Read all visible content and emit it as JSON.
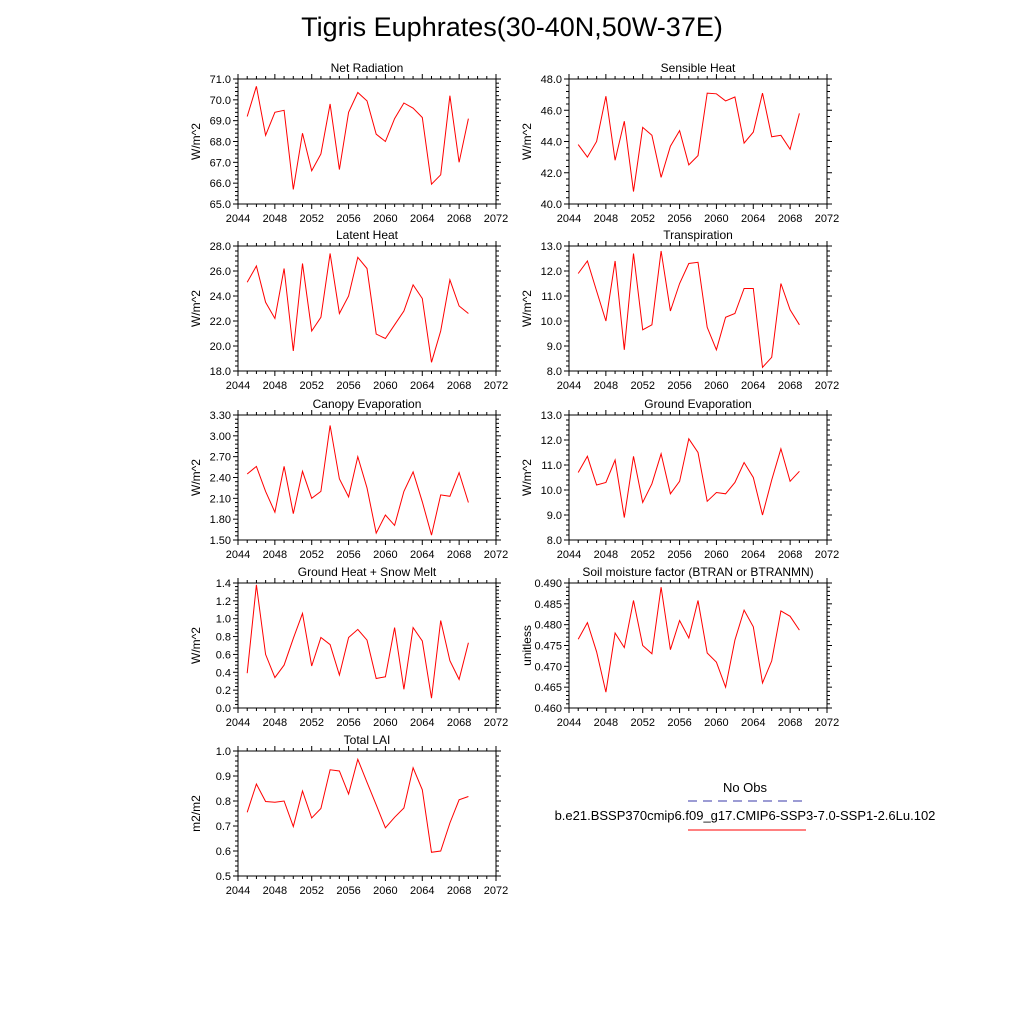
{
  "title": "Tigris Euphrates(30-40N,50W-37E)",
  "colors": {
    "series": "#ff0000",
    "obs": "#3a3aa8",
    "axis": "#000000"
  },
  "legend": {
    "obs_label": "No Obs",
    "case_label": "b.e21.BSSP370cmip6.f09_g17.CMIP6-SSP3-7.0-SSP1-2.6Lu.102"
  },
  "chart_data": [
    {
      "type": "line",
      "title": "Net Radiation",
      "ylabel": "W/m^2",
      "xlim": [
        2044,
        2072
      ],
      "xticks": [
        "2044",
        "2048",
        "2052",
        "2056",
        "2060",
        "2064",
        "2068",
        "2072"
      ],
      "ylim": [
        65.0,
        71.0
      ],
      "yticks": [
        "65.0",
        "66.0",
        "67.0",
        "68.0",
        "69.0",
        "70.0",
        "71.0"
      ],
      "x": [
        2045,
        2046,
        2047,
        2048,
        2049,
        2050,
        2051,
        2052,
        2053,
        2054,
        2055,
        2056,
        2057,
        2058,
        2059,
        2060,
        2061,
        2062,
        2063,
        2064,
        2065,
        2066,
        2067,
        2068,
        2069
      ],
      "values": [
        69.2,
        70.65,
        68.3,
        69.4,
        69.5,
        65.7,
        68.4,
        66.6,
        67.4,
        69.8,
        66.65,
        69.4,
        70.35,
        69.95,
        68.35,
        68.0,
        69.1,
        69.85,
        69.6,
        69.15,
        65.95,
        66.4,
        70.2,
        67.0,
        69.1
      ]
    },
    {
      "type": "line",
      "title": "Sensible Heat",
      "ylabel": "W/m^2",
      "xlim": [
        2044,
        2072
      ],
      "xticks": [
        "2044",
        "2048",
        "2052",
        "2056",
        "2060",
        "2064",
        "2068",
        "2072"
      ],
      "ylim": [
        40.0,
        48.0
      ],
      "yticks": [
        "40.0",
        "42.0",
        "44.0",
        "46.0",
        "48.0"
      ],
      "x": [
        2045,
        2046,
        2047,
        2048,
        2049,
        2050,
        2051,
        2052,
        2053,
        2054,
        2055,
        2056,
        2057,
        2058,
        2059,
        2060,
        2061,
        2062,
        2063,
        2064,
        2065,
        2066,
        2067,
        2068,
        2069
      ],
      "values": [
        43.8,
        43.0,
        44.0,
        46.9,
        42.8,
        45.3,
        40.8,
        44.9,
        44.4,
        41.7,
        43.7,
        44.7,
        42.5,
        43.1,
        47.1,
        47.05,
        46.6,
        46.85,
        43.9,
        44.6,
        47.1,
        44.3,
        44.4,
        43.5,
        45.8
      ]
    },
    {
      "type": "line",
      "title": "Latent Heat",
      "ylabel": "W/m^2",
      "xlim": [
        2044,
        2072
      ],
      "xticks": [
        "2044",
        "2048",
        "2052",
        "2056",
        "2060",
        "2064",
        "2068",
        "2072"
      ],
      "ylim": [
        18.0,
        28.0
      ],
      "yticks": [
        "18.0",
        "20.0",
        "22.0",
        "24.0",
        "26.0",
        "28.0"
      ],
      "x": [
        2045,
        2046,
        2047,
        2048,
        2049,
        2050,
        2051,
        2052,
        2053,
        2054,
        2055,
        2056,
        2057,
        2058,
        2059,
        2060,
        2061,
        2062,
        2063,
        2064,
        2065,
        2066,
        2067,
        2068,
        2069
      ],
      "values": [
        25.1,
        26.4,
        23.5,
        22.2,
        26.2,
        19.6,
        26.6,
        21.2,
        22.3,
        27.4,
        22.6,
        24.0,
        27.1,
        26.2,
        20.95,
        20.6,
        21.7,
        22.8,
        24.9,
        23.8,
        18.7,
        21.2,
        25.3,
        23.2,
        22.6
      ]
    },
    {
      "type": "line",
      "title": "Transpiration",
      "ylabel": "W/m^2",
      "xlim": [
        2044,
        2072
      ],
      "xticks": [
        "2044",
        "2048",
        "2052",
        "2056",
        "2060",
        "2064",
        "2068",
        "2072"
      ],
      "ylim": [
        8.0,
        13.0
      ],
      "yticks": [
        "8.0",
        "9.0",
        "10.0",
        "11.0",
        "12.0",
        "13.0"
      ],
      "x": [
        2045,
        2046,
        2047,
        2048,
        2049,
        2050,
        2051,
        2052,
        2053,
        2054,
        2055,
        2056,
        2057,
        2058,
        2059,
        2060,
        2061,
        2062,
        2063,
        2064,
        2065,
        2066,
        2067,
        2068,
        2069
      ],
      "values": [
        11.9,
        12.4,
        11.2,
        10.0,
        12.4,
        8.85,
        12.7,
        9.65,
        9.85,
        12.8,
        10.4,
        11.5,
        12.3,
        12.35,
        9.75,
        8.85,
        10.15,
        10.3,
        11.3,
        11.3,
        8.15,
        8.55,
        11.5,
        10.45,
        9.85
      ]
    },
    {
      "type": "line",
      "title": "Canopy Evaporation",
      "ylabel": "W/m^2",
      "xlim": [
        2044,
        2072
      ],
      "xticks": [
        "2044",
        "2048",
        "2052",
        "2056",
        "2060",
        "2064",
        "2068",
        "2072"
      ],
      "ylim": [
        1.5,
        3.3
      ],
      "yticks": [
        "1.50",
        "1.80",
        "2.10",
        "2.40",
        "2.70",
        "3.00",
        "3.30"
      ],
      "x": [
        2045,
        2046,
        2047,
        2048,
        2049,
        2050,
        2051,
        2052,
        2053,
        2054,
        2055,
        2056,
        2057,
        2058,
        2059,
        2060,
        2061,
        2062,
        2063,
        2064,
        2065,
        2066,
        2067,
        2068,
        2069
      ],
      "values": [
        2.45,
        2.56,
        2.2,
        1.9,
        2.56,
        1.88,
        2.49,
        2.1,
        2.2,
        3.15,
        2.38,
        2.12,
        2.7,
        2.25,
        1.6,
        1.86,
        1.71,
        2.2,
        2.48,
        2.05,
        1.57,
        2.15,
        2.13,
        2.47,
        2.04
      ]
    },
    {
      "type": "line",
      "title": "Ground Evaporation",
      "ylabel": "W/m^2",
      "xlim": [
        2044,
        2072
      ],
      "xticks": [
        "2044",
        "2048",
        "2052",
        "2056",
        "2060",
        "2064",
        "2068",
        "2072"
      ],
      "ylim": [
        8.0,
        13.0
      ],
      "yticks": [
        "8.0",
        "9.0",
        "10.0",
        "11.0",
        "12.0",
        "13.0"
      ],
      "x": [
        2045,
        2046,
        2047,
        2048,
        2049,
        2050,
        2051,
        2052,
        2053,
        2054,
        2055,
        2056,
        2057,
        2058,
        2059,
        2060,
        2061,
        2062,
        2063,
        2064,
        2065,
        2066,
        2067,
        2068,
        2069
      ],
      "values": [
        10.7,
        11.35,
        10.2,
        10.3,
        11.2,
        8.9,
        11.35,
        9.5,
        10.25,
        11.45,
        9.85,
        10.35,
        12.05,
        11.5,
        9.55,
        9.9,
        9.85,
        10.3,
        11.1,
        10.5,
        9.0,
        10.4,
        11.65,
        10.35,
        10.75
      ]
    },
    {
      "type": "line",
      "title": "Ground Heat + Snow Melt",
      "ylabel": "W/m^2",
      "xlim": [
        2044,
        2072
      ],
      "xticks": [
        "2044",
        "2048",
        "2052",
        "2056",
        "2060",
        "2064",
        "2068",
        "2072"
      ],
      "ylim": [
        0.0,
        1.4
      ],
      "yticks": [
        "0.0",
        "0.2",
        "0.4",
        "0.6",
        "0.8",
        "1.0",
        "1.2",
        "1.4"
      ],
      "x": [
        2045,
        2046,
        2047,
        2048,
        2049,
        2050,
        2051,
        2052,
        2053,
        2054,
        2055,
        2056,
        2057,
        2058,
        2059,
        2060,
        2061,
        2062,
        2063,
        2064,
        2065,
        2066,
        2067,
        2068,
        2069
      ],
      "values": [
        0.39,
        1.38,
        0.6,
        0.34,
        0.48,
        0.78,
        1.06,
        0.47,
        0.79,
        0.71,
        0.37,
        0.79,
        0.88,
        0.76,
        0.33,
        0.35,
        0.9,
        0.21,
        0.9,
        0.75,
        0.11,
        0.98,
        0.53,
        0.32,
        0.73
      ]
    },
    {
      "type": "line",
      "title": "Soil moisture factor (BTRAN or BTRANMN)",
      "ylabel": "unitless",
      "xlim": [
        2044,
        2072
      ],
      "xticks": [
        "2044",
        "2048",
        "2052",
        "2056",
        "2060",
        "2064",
        "2068",
        "2072"
      ],
      "ylim": [
        0.46,
        0.49
      ],
      "yticks": [
        "0.460",
        "0.465",
        "0.470",
        "0.475",
        "0.480",
        "0.485",
        "0.490"
      ],
      "x": [
        2045,
        2046,
        2047,
        2048,
        2049,
        2050,
        2051,
        2052,
        2053,
        2054,
        2055,
        2056,
        2057,
        2058,
        2059,
        2060,
        2061,
        2062,
        2063,
        2064,
        2065,
        2066,
        2067,
        2068,
        2069
      ],
      "values": [
        0.4765,
        0.4805,
        0.4735,
        0.4638,
        0.478,
        0.4745,
        0.4858,
        0.475,
        0.473,
        0.489,
        0.474,
        0.481,
        0.4768,
        0.4858,
        0.4732,
        0.471,
        0.465,
        0.4763,
        0.4835,
        0.4795,
        0.466,
        0.4713,
        0.4833,
        0.482,
        0.4787
      ]
    },
    {
      "type": "line",
      "title": "Total LAI",
      "ylabel": "m2/m2",
      "xlim": [
        2044,
        2072
      ],
      "xticks": [
        "2044",
        "2048",
        "2052",
        "2056",
        "2060",
        "2064",
        "2068",
        "2072"
      ],
      "ylim": [
        0.5,
        1.0
      ],
      "yticks": [
        "0.5",
        "0.6",
        "0.7",
        "0.8",
        "0.9",
        "1.0"
      ],
      "x": [
        2045,
        2046,
        2047,
        2048,
        2049,
        2050,
        2051,
        2052,
        2053,
        2054,
        2055,
        2056,
        2057,
        2058,
        2059,
        2060,
        2061,
        2062,
        2063,
        2064,
        2065,
        2066,
        2067,
        2068,
        2069
      ],
      "values": [
        0.755,
        0.868,
        0.798,
        0.795,
        0.8,
        0.698,
        0.84,
        0.732,
        0.77,
        0.925,
        0.92,
        0.828,
        0.967,
        0.875,
        0.785,
        0.693,
        0.735,
        0.772,
        0.933,
        0.845,
        0.595,
        0.6,
        0.712,
        0.805,
        0.818
      ]
    }
  ]
}
